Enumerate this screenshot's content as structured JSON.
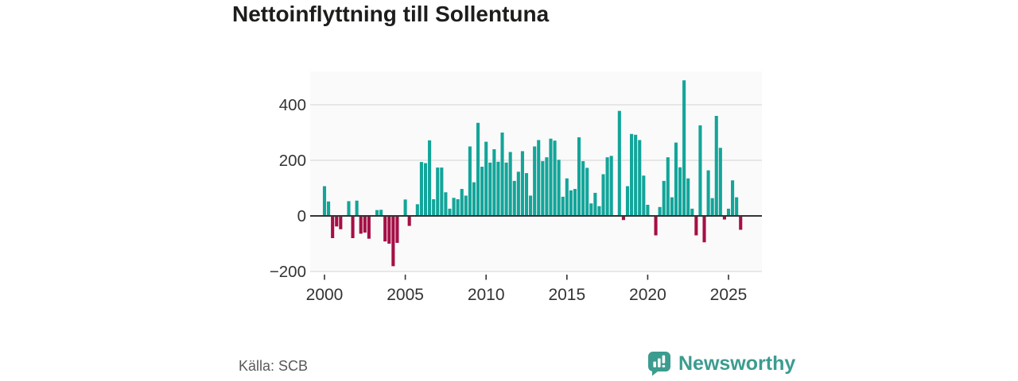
{
  "title": "Nettoinflyttning till Sollentuna",
  "source_label": "Källa: SCB",
  "logo": {
    "text": "Newsworthy",
    "icon": "speech-bubble-bar-chart-icon"
  },
  "colors": {
    "background": "#ffffff",
    "plot_background": "#fafafa",
    "positive_bar": "#13a59a",
    "negative_bar": "#a50f45",
    "grid": "#dcdcdc",
    "axis_line": "#333333",
    "tick_text": "#333333",
    "title_text": "#1d1d1b",
    "muted_text": "#595959",
    "brand_teal": "#3b9c8f"
  },
  "chart_data": {
    "type": "bar",
    "title": "Nettoinflyttning till Sollentuna",
    "xlabel": "",
    "ylabel": "",
    "frequency": "quarterly",
    "start": "2000-Q1",
    "end": "2025-Q4",
    "x_tick_labels": [
      "2000",
      "2005",
      "2010",
      "2015",
      "2020",
      "2025"
    ],
    "x_tick_years": [
      2000,
      2005,
      2010,
      2015,
      2020,
      2025
    ],
    "y_ticks": [
      -200,
      0,
      200,
      400
    ],
    "y_tick_labels": [
      "−200",
      "0",
      "200",
      "400"
    ],
    "ylim": [
      -230,
      530
    ],
    "grid": "horizontal",
    "legend": "none",
    "values": [
      107,
      52,
      -80,
      -38,
      -48,
      0,
      53,
      -80,
      55,
      -64,
      -60,
      -82,
      0,
      21,
      22,
      -92,
      -100,
      -181,
      -97,
      0,
      59,
      -36,
      0,
      42,
      194,
      190,
      272,
      60,
      174,
      174,
      85,
      26,
      65,
      60,
      97,
      73,
      250,
      121,
      335,
      177,
      267,
      192,
      240,
      195,
      300,
      192,
      230,
      126,
      159,
      233,
      154,
      73,
      250,
      273,
      197,
      211,
      278,
      271,
      202,
      69,
      135,
      92,
      97,
      283,
      197,
      173,
      45,
      83,
      35,
      150,
      211,
      216,
      0,
      378,
      -15,
      107,
      295,
      292,
      273,
      145,
      40,
      0,
      -70,
      32,
      126,
      211,
      67,
      264,
      175,
      488,
      135,
      26,
      -70,
      326,
      -95,
      164,
      64,
      360,
      245,
      -13,
      26,
      128,
      67,
      -50
    ]
  }
}
